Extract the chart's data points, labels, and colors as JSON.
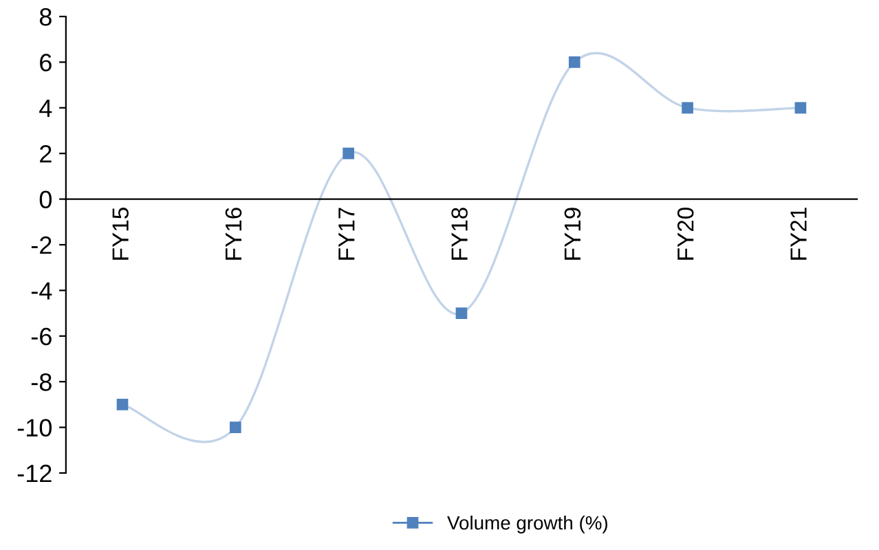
{
  "chart_data": {
    "type": "line",
    "categories": [
      "FY15",
      "FY16",
      "FY17",
      "FY18",
      "FY19",
      "FY20",
      "FY21"
    ],
    "series": [
      {
        "name": "Volume growth (%)",
        "color": "#4f81bd",
        "values": [
          -9,
          -10,
          2,
          -5,
          6,
          4,
          4
        ]
      }
    ],
    "ylim": [
      -12,
      8
    ],
    "yticks": [
      -12,
      -10,
      -8,
      -6,
      -4,
      -2,
      0,
      2,
      4,
      6,
      8
    ],
    "marker": "square",
    "line_style": "solid",
    "grid": false,
    "legend": "bottom"
  }
}
